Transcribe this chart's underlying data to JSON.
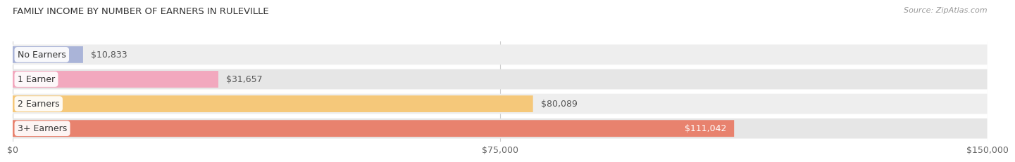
{
  "title": "FAMILY INCOME BY NUMBER OF EARNERS IN RULEVILLE",
  "source": "Source: ZipAtlas.com",
  "categories": [
    "No Earners",
    "1 Earner",
    "2 Earners",
    "3+ Earners"
  ],
  "values": [
    10833,
    31657,
    80089,
    111042
  ],
  "bar_colors": [
    "#aab4d8",
    "#f2a8be",
    "#f5c87a",
    "#e8826e"
  ],
  "label_colors": [
    "#555555",
    "#555555",
    "#555555",
    "#ffffff"
  ],
  "bg_color_odd": "#eeeeee",
  "bg_color_even": "#e6e6e6",
  "value_labels": [
    "$10,833",
    "$31,657",
    "$80,089",
    "$111,042"
  ],
  "xmax": 150000,
  "xticks": [
    0,
    75000,
    150000
  ],
  "xticklabels": [
    "$0",
    "$75,000",
    "$150,000"
  ],
  "title_fontsize": 9.5,
  "bar_label_fontsize": 9,
  "value_label_fontsize": 9,
  "axis_label_fontsize": 9,
  "source_fontsize": 8,
  "fig_bg": "#ffffff"
}
